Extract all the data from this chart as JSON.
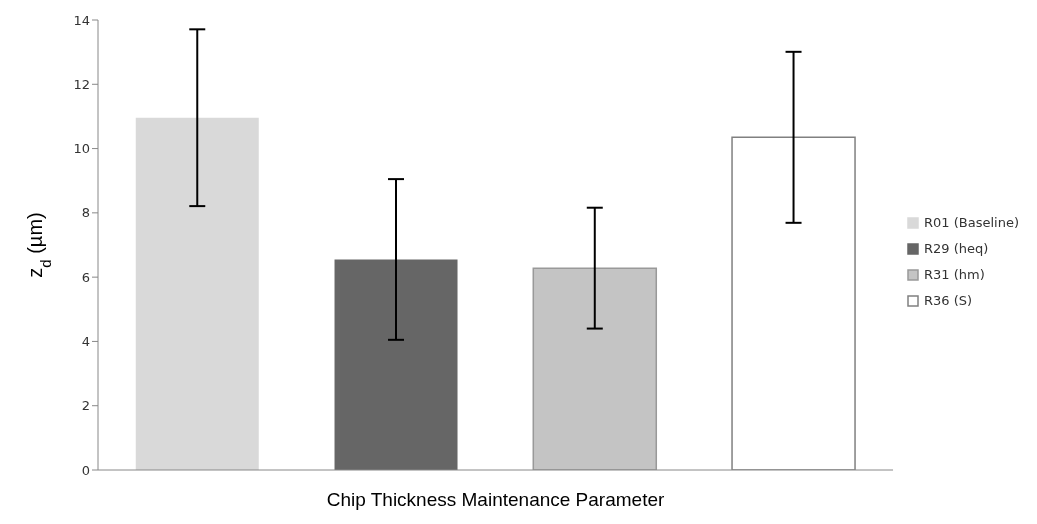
{
  "chart_data": {
    "type": "bar",
    "xlabel": "Chip Thickness Maintenance Parameter",
    "ylabel": "z$_{d}$ (µm)",
    "categories": [
      null,
      null,
      null,
      null
    ],
    "series": [
      {
        "name": "R01 (Baseline)",
        "color": "#d9d9d9",
        "values": [
          10.96,
          null,
          null,
          null
        ],
        "errors": [
          2.75,
          null,
          null,
          null
        ]
      },
      {
        "name": "R29 (heq)",
        "color": "#666666",
        "values": [
          null,
          6.55,
          null,
          null
        ],
        "errors": [
          null,
          2.5,
          null,
          null
        ]
      },
      {
        "name": "R31 (hm)",
        "color": "#c4c4c4",
        "values": [
          null,
          null,
          6.28,
          null
        ],
        "errors": [
          null,
          null,
          1.88,
          null
        ]
      },
      {
        "name": "R36 (S)",
        "color": "#ffffff",
        "values": [
          null,
          null,
          null,
          10.35
        ],
        "errors": [
          null,
          null,
          null,
          2.66
        ]
      }
    ],
    "ylim": [
      0,
      14
    ],
    "yticks": [
      0,
      2,
      4,
      6,
      8,
      10,
      12,
      14
    ],
    "legend": "right"
  }
}
